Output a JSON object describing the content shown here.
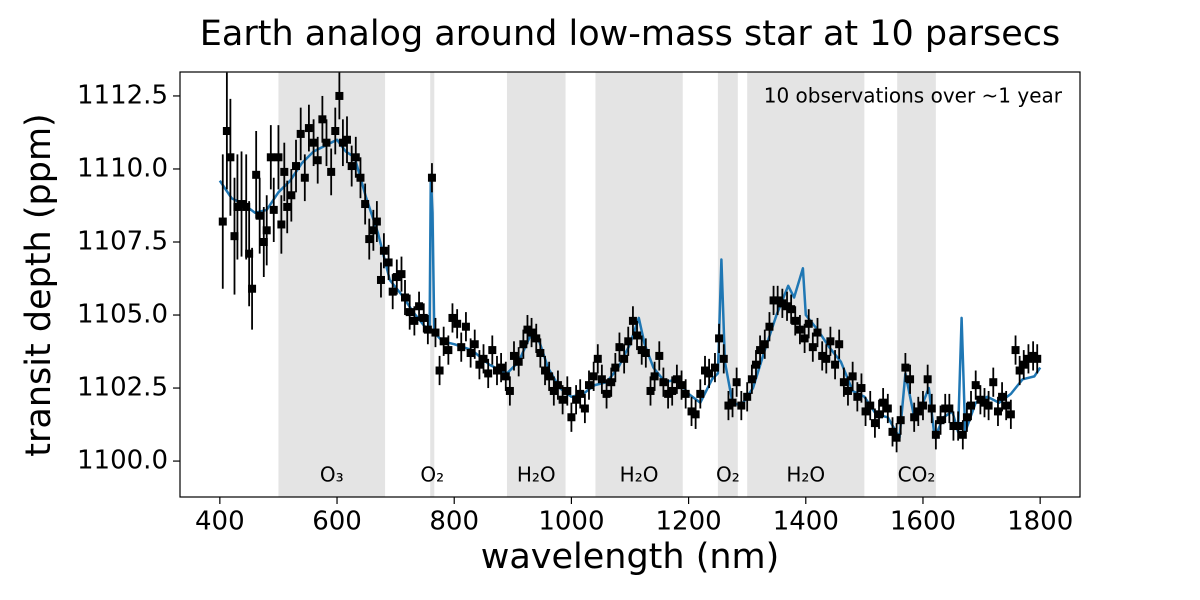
{
  "chart_data": {
    "type": "scatter",
    "title": "Earth analog around low-mass star at 10 parsecs",
    "xlabel": "wavelength (nm)",
    "ylabel": "transit depth (ppm)",
    "annotation": "10 observations over ~1 year",
    "xlim": [
      332,
      1868
    ],
    "ylim": [
      1098.77,
      1113.32
    ],
    "xticks": [
      400,
      600,
      800,
      1000,
      1200,
      1400,
      1600,
      1800
    ],
    "yticks": [
      {
        "value": 1100,
        "label": "1100.0"
      },
      1102.5,
      {
        "value": 1105,
        "label": "1105.0"
      },
      1107.5,
      {
        "value": 1110,
        "label": "1110.0"
      },
      1112.5
    ],
    "band_color": "#d9d9d9",
    "bands": [
      {
        "start": 500,
        "end": 682,
        "label": "O₃"
      },
      {
        "start": 759,
        "end": 766,
        "label": "O₂"
      },
      {
        "start": 890,
        "end": 990,
        "label": "H₂O"
      },
      {
        "start": 1041,
        "end": 1190,
        "label": "H₂O"
      },
      {
        "start": 1250,
        "end": 1284,
        "label": "O₂"
      },
      {
        "start": 1300,
        "end": 1500,
        "label": "H₂O"
      },
      {
        "start": 1556,
        "end": 1622,
        "label": "CO₂"
      }
    ],
    "model": {
      "color": "#1f77b4",
      "x": [
        400,
        420,
        440,
        460,
        480,
        500,
        520,
        540,
        560,
        580,
        600,
        615,
        630,
        650,
        670,
        690,
        710,
        730,
        750,
        758,
        760,
        763,
        766,
        780,
        800,
        830,
        860,
        890,
        910,
        930,
        945,
        960,
        980,
        1000,
        1020,
        1040,
        1060,
        1080,
        1100,
        1115,
        1125,
        1140,
        1160,
        1180,
        1200,
        1220,
        1240,
        1250,
        1256,
        1262,
        1275,
        1290,
        1310,
        1330,
        1350,
        1370,
        1380,
        1395,
        1400,
        1420,
        1440,
        1460,
        1480,
        1500,
        1520,
        1540,
        1560,
        1570,
        1585,
        1600,
        1610,
        1620,
        1635,
        1650,
        1660,
        1666,
        1672,
        1690,
        1710,
        1730,
        1750,
        1770,
        1790,
        1800
      ],
      "values": [
        1109.6,
        1109.0,
        1108.8,
        1108.5,
        1108.6,
        1109.2,
        1109.6,
        1110.2,
        1110.6,
        1110.8,
        1111.0,
        1110.6,
        1110.4,
        1109.0,
        1107.8,
        1106.2,
        1105.7,
        1105.1,
        1104.6,
        1104.5,
        1109.8,
        1108.5,
        1104.4,
        1104.1,
        1104.0,
        1103.8,
        1103.3,
        1103.0,
        1103.4,
        1104.3,
        1104.1,
        1103.2,
        1102.5,
        1102.2,
        1102.3,
        1102.6,
        1102.7,
        1103.2,
        1104.0,
        1104.9,
        1104.0,
        1103.2,
        1102.7,
        1102.8,
        1102.3,
        1102.0,
        1102.8,
        1103.0,
        1106.9,
        1103.4,
        1102.0,
        1101.9,
        1102.5,
        1103.8,
        1105.0,
        1106.0,
        1105.6,
        1106.6,
        1105.0,
        1104.5,
        1103.9,
        1103.4,
        1102.4,
        1102.2,
        1101.6,
        1101.5,
        1100.8,
        1103.0,
        1101.5,
        1102.0,
        1102.5,
        1100.8,
        1101.5,
        1101.7,
        1101.0,
        1104.9,
        1101.0,
        1102.0,
        1102.2,
        1102.0,
        1102.3,
        1102.8,
        1102.9,
        1103.2
      ]
    },
    "observations": {
      "color": "#000000",
      "x": [
        405,
        412,
        418,
        425,
        430,
        437,
        445,
        450,
        455,
        462,
        468,
        475,
        480,
        487,
        492,
        500,
        505,
        510,
        515,
        522,
        530,
        538,
        545,
        552,
        560,
        567,
        575,
        582,
        590,
        597,
        604,
        610,
        617,
        625,
        632,
        640,
        648,
        655,
        662,
        668,
        675,
        680,
        688,
        695,
        702,
        710,
        716,
        724,
        732,
        740,
        748,
        755,
        762,
        768,
        775,
        782,
        790,
        797,
        805,
        812,
        820,
        828,
        835,
        843,
        850,
        858,
        865,
        873,
        880,
        888,
        895,
        902,
        910,
        918,
        925,
        932,
        940,
        947,
        955,
        962,
        970,
        977,
        985,
        993,
        1000,
        1008,
        1015,
        1023,
        1030,
        1038,
        1045,
        1052,
        1060,
        1068,
        1075,
        1082,
        1090,
        1097,
        1105,
        1112,
        1120,
        1127,
        1135,
        1142,
        1150,
        1157,
        1165,
        1172,
        1180,
        1188,
        1195,
        1205,
        1212,
        1220,
        1228,
        1235,
        1245,
        1252,
        1260,
        1268,
        1275,
        1282,
        1290,
        1300,
        1308,
        1315,
        1322,
        1330,
        1338,
        1345,
        1352,
        1360,
        1368,
        1375,
        1382,
        1390,
        1398,
        1405,
        1412,
        1420,
        1428,
        1435,
        1442,
        1450,
        1457,
        1465,
        1472,
        1480,
        1488,
        1495,
        1502,
        1510,
        1518,
        1525,
        1532,
        1540,
        1548,
        1555,
        1562,
        1570,
        1578,
        1585,
        1592,
        1600,
        1608,
        1615,
        1622,
        1630,
        1638,
        1645,
        1652,
        1660,
        1668,
        1675,
        1682,
        1690,
        1698,
        1705,
        1712,
        1720,
        1728,
        1735,
        1742,
        1750,
        1758,
        1765,
        1772,
        1780,
        1788,
        1795
      ],
      "values": [
        1108.2,
        1111.3,
        1110.4,
        1107.7,
        1108.7,
        1108.8,
        1108.7,
        1107.1,
        1105.9,
        1109.8,
        1108.4,
        1107.5,
        1107.9,
        1110.4,
        1108.6,
        1110.4,
        1108.1,
        1109.9,
        1108.7,
        1109.1,
        1110.1,
        1111.2,
        1109.7,
        1111.4,
        1110.9,
        1110.3,
        1111.7,
        1110.9,
        1109.9,
        1111.3,
        1112.5,
        1110.9,
        1111.0,
        1110.1,
        1110.4,
        1109.7,
        1108.8,
        1107.6,
        1107.9,
        1108.2,
        1106.2,
        1107.2,
        1106.8,
        1105.8,
        1106.3,
        1106.4,
        1105.6,
        1105.1,
        1104.8,
        1105.3,
        1104.9,
        1104.5,
        1109.7,
        1104.4,
        1103.1,
        1104.1,
        1103.8,
        1104.9,
        1104.7,
        1103.9,
        1104.6,
        1103.7,
        1104.0,
        1103.3,
        1103.5,
        1103.0,
        1103.8,
        1103.1,
        1103.2,
        1102.9,
        1102.4,
        1103.6,
        1103.4,
        1104.0,
        1104.5,
        1104.4,
        1104.2,
        1103.7,
        1103.1,
        1102.9,
        1102.4,
        1102.6,
        1102.1,
        1102.4,
        1101.5,
        1102.1,
        1102.3,
        1101.8,
        1102.6,
        1102.9,
        1103.5,
        1102.8,
        1102.3,
        1102.7,
        1103.2,
        1103.9,
        1103.5,
        1104.1,
        1104.8,
        1104.3,
        1103.8,
        1103.7,
        1102.4,
        1102.9,
        1103.6,
        1102.7,
        1102.3,
        1102.4,
        1102.8,
        1102.6,
        1102.3,
        1101.7,
        1101.6,
        1102.3,
        1103.1,
        1103.0,
        1103.2,
        1104.2,
        1103.5,
        1101.9,
        1102.0,
        1102.7,
        1101.9,
        1102.2,
        1102.8,
        1103.3,
        1103.8,
        1104.0,
        1104.6,
        1105.5,
        1105.5,
        1105.4,
        1105.3,
        1105.2,
        1104.8,
        1104.5,
        1104.2,
        1104.7,
        1103.9,
        1104.4,
        1103.6,
        1103.5,
        1104.1,
        1103.3,
        1104.0,
        1102.7,
        1102.4,
        1102.9,
        1102.2,
        1102.5,
        1101.7,
        1101.9,
        1101.3,
        1101.6,
        1102.0,
        1101.8,
        1101.0,
        1100.8,
        1101.4,
        1103.2,
        1102.8,
        1101.5,
        1101.7,
        1101.9,
        1102.8,
        1101.8,
        1100.9,
        1101.4,
        1101.8,
        1101.8,
        1101.2,
        1101.2,
        1100.9,
        1101.5,
        1101.9,
        1102.6,
        1102.1,
        1102.0,
        1101.9,
        1102.7,
        1101.7,
        1102.2,
        1101.9,
        1101.6,
        1103.8,
        1103.1,
        1103.3,
        1103.5,
        1103.6,
        1103.5
      ],
      "errors": [
        2.3,
        2.0,
        2.0,
        2.0,
        1.8,
        1.8,
        1.8,
        1.8,
        1.4,
        1.5,
        1.3,
        1.2,
        1.2,
        1.1,
        1.1,
        1.1,
        1.0,
        1.0,
        0.9,
        0.9,
        0.9,
        0.9,
        0.8,
        0.8,
        0.8,
        0.8,
        0.8,
        0.8,
        0.8,
        0.8,
        0.8,
        0.8,
        0.8,
        0.7,
        0.7,
        0.7,
        0.7,
        0.7,
        0.7,
        0.7,
        0.6,
        0.6,
        0.6,
        0.6,
        0.6,
        0.6,
        0.6,
        0.6,
        0.5,
        0.5,
        0.5,
        0.5,
        0.5,
        0.5,
        0.5,
        0.5,
        0.5,
        0.5,
        0.5,
        0.5,
        0.5,
        0.5,
        0.5,
        0.5,
        0.5,
        0.5,
        0.5,
        0.5,
        0.5,
        0.5,
        0.5,
        0.5,
        0.5,
        0.5,
        0.5,
        0.5,
        0.5,
        0.5,
        0.5,
        0.5,
        0.5,
        0.5,
        0.5,
        0.5,
        0.5,
        0.5,
        0.5,
        0.5,
        0.5,
        0.5,
        0.5,
        0.5,
        0.5,
        0.5,
        0.5,
        0.5,
        0.5,
        0.5,
        0.5,
        0.5,
        0.5,
        0.5,
        0.5,
        0.5,
        0.5,
        0.5,
        0.5,
        0.5,
        0.5,
        0.5,
        0.5,
        0.5,
        0.5,
        0.5,
        0.5,
        0.5,
        0.5,
        0.5,
        0.5,
        0.5,
        0.5,
        0.5,
        0.5,
        0.5,
        0.5,
        0.5,
        0.5,
        0.5,
        0.5,
        0.5,
        0.5,
        0.5,
        0.5,
        0.5,
        0.5,
        0.5,
        0.5,
        0.5,
        0.5,
        0.5,
        0.5,
        0.5,
        0.5,
        0.5,
        0.5,
        0.5,
        0.5,
        0.5,
        0.5,
        0.5,
        0.5,
        0.5,
        0.5,
        0.5,
        0.5,
        0.5,
        0.5,
        0.5,
        0.5,
        0.5,
        0.5,
        0.5,
        0.5,
        0.5,
        0.5,
        0.5,
        0.5,
        0.5,
        0.5,
        0.5,
        0.5,
        0.5,
        0.5,
        0.5,
        0.5,
        0.5,
        0.5,
        0.5,
        0.5,
        0.5,
        0.5,
        0.5,
        0.5,
        0.5,
        0.5,
        0.5,
        0.5,
        0.5,
        0.5,
        0.5
      ]
    }
  }
}
